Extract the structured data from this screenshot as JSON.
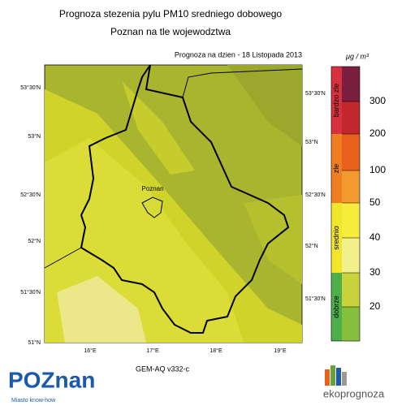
{
  "header": {
    "title": "Prognoza stezenia pylu PM10 sredniego dobowego",
    "subtitle": "Poznan na tle wojewodztwa",
    "date": "Prognoza na dzien -  18 Listopada 2013"
  },
  "map": {
    "city": "Poznan",
    "left_labels": [
      "53°30'N",
      "53°N",
      "52°30'N",
      "52°N",
      "51°30'N",
      "51°N"
    ],
    "right_labels": [
      "53°30'N",
      "53°N",
      "52°30'N",
      "52°N",
      "51°30'N"
    ],
    "bottom_labels": [
      "16°E",
      "17°E",
      "18°E",
      "19°E"
    ]
  },
  "legend": {
    "unit": "μg / m³",
    "ticks": [
      300,
      200,
      100,
      50,
      40,
      30,
      20
    ],
    "classes": [
      {
        "label": "bardzo zle",
        "color": "#d8303f"
      },
      {
        "label": "zle",
        "color": "#ef7d22"
      },
      {
        "label": "srednio",
        "color": "#f2e62a"
      },
      {
        "label": "dobrze",
        "color": "#4caf4a"
      }
    ],
    "colors": [
      "#7a1f3f",
      "#c1272d",
      "#e8601c",
      "#f29a2e",
      "#f6ec3c",
      "#f2f08a",
      "#c8d23a",
      "#86bf3c",
      "#1f8a42"
    ]
  },
  "footer": {
    "model": "GEM-AQ v332-c",
    "logo": "POZnan",
    "slogan": "Miasto know-how",
    "brand": "ekoprognoza"
  }
}
